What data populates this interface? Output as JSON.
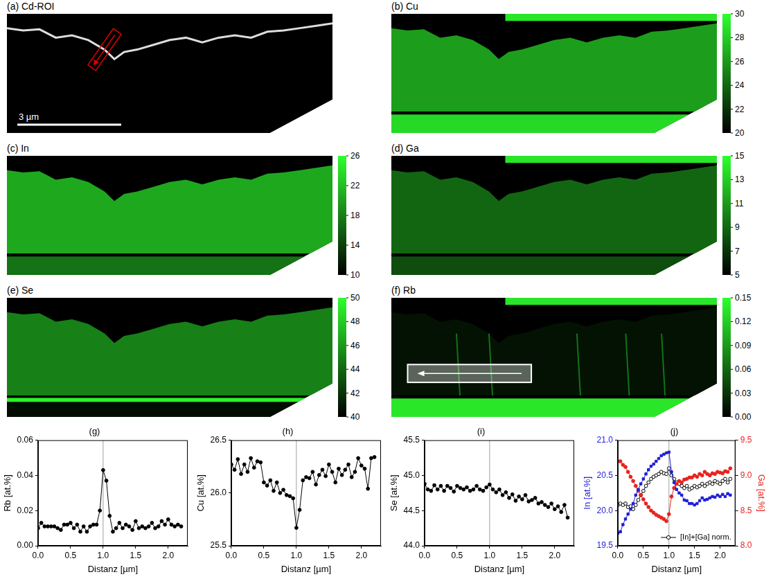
{
  "maps": [
    {
      "title": "(a) Cd-ROI",
      "scale_bar": "3 µm"
    },
    {
      "title": "(b) Cu",
      "colorbar": {
        "range": [
          20,
          30
        ],
        "ticks": [
          20,
          22,
          24,
          26,
          28,
          30
        ]
      }
    },
    {
      "title": "(c) In",
      "colorbar": {
        "range": [
          10,
          26
        ],
        "ticks": [
          10,
          14,
          18,
          22,
          26
        ]
      }
    },
    {
      "title": "(d) Ga",
      "colorbar": {
        "range": [
          5,
          15
        ],
        "ticks": [
          5,
          7,
          9,
          11,
          13,
          15
        ]
      }
    },
    {
      "title": "(e) Se",
      "colorbar": {
        "range": [
          40,
          50
        ],
        "ticks": [
          40,
          42,
          44,
          46,
          48,
          50
        ]
      }
    },
    {
      "title": "(f) Rb",
      "colorbar": {
        "range": [
          0,
          0.15
        ],
        "ticks": [
          {
            "value": 0,
            "label": "0.00"
          },
          0.03,
          0.06,
          0.09,
          0.12,
          0.15
        ]
      }
    }
  ],
  "chart_data": [
    {
      "type": "line",
      "title": "(g)",
      "x_label": "Distanz [µm]",
      "y_label": "Rb [at.%]",
      "grid": false,
      "vline": 1,
      "x": [
        0,
        0.05,
        0.1,
        0.15,
        0.2,
        0.25,
        0.3,
        0.35,
        0.4,
        0.45,
        0.5,
        0.55,
        0.6,
        0.65,
        0.7,
        0.75,
        0.8,
        0.85,
        0.9,
        0.95,
        1,
        1.05,
        1.1,
        1.15,
        1.2,
        1.25,
        1.3,
        1.35,
        1.4,
        1.45,
        1.5,
        1.55,
        1.6,
        1.65,
        1.7,
        1.75,
        1.8,
        1.85,
        1.9,
        1.95,
        2,
        2.05,
        2.1,
        2.15,
        2.2
      ],
      "xlim": [
        0,
        2.3
      ],
      "xticks": [
        {
          "value": 0,
          "label": "0.0"
        },
        0.5,
        {
          "value": 1,
          "label": "1.0"
        },
        1.5,
        {
          "value": 2,
          "label": "2.0"
        }
      ],
      "ylim": [
        0,
        0.06
      ],
      "yticks": [
        {
          "value": 0,
          "label": "0.00"
        },
        0.02,
        0.04,
        0.06
      ],
      "series": [
        {
          "color": "#000000",
          "marker": "circle",
          "values": [
            0.01,
            0.013,
            0.011,
            0.011,
            0.011,
            0.011,
            0.01,
            0.009,
            0.012,
            0.012,
            0.013,
            0.01,
            0.012,
            0.008,
            0.011,
            0.008,
            0.011,
            0.012,
            0.012,
            0.02,
            0.043,
            0.037,
            0.017,
            0.008,
            0.01,
            0.013,
            0.01,
            0.012,
            0.011,
            0.009,
            0.014,
            0.01,
            0.011,
            0.01,
            0.011,
            0.013,
            0.01,
            0.011,
            0.014,
            0.012,
            0.015,
            0.012,
            0.011,
            0.012,
            0.011
          ]
        }
      ]
    },
    {
      "type": "line",
      "title": "(h)",
      "x_label": "Distanz [µm]",
      "y_label": "Cu [at.%]",
      "grid": false,
      "vline": 1,
      "x": [
        0,
        0.05,
        0.1,
        0.15,
        0.2,
        0.25,
        0.3,
        0.35,
        0.4,
        0.45,
        0.5,
        0.55,
        0.6,
        0.65,
        0.7,
        0.75,
        0.8,
        0.85,
        0.9,
        0.95,
        1,
        1.05,
        1.1,
        1.15,
        1.2,
        1.25,
        1.3,
        1.35,
        1.4,
        1.45,
        1.5,
        1.55,
        1.6,
        1.65,
        1.7,
        1.75,
        1.8,
        1.85,
        1.9,
        1.95,
        2,
        2.05,
        2.1,
        2.15,
        2.2
      ],
      "xlim": [
        0,
        2.3
      ],
      "xticks": [
        {
          "value": 0,
          "label": "0.0"
        },
        0.5,
        {
          "value": 1,
          "label": "1.0"
        },
        1.5,
        {
          "value": 2,
          "label": "2.0"
        }
      ],
      "ylim": [
        25.5,
        26.5
      ],
      "yticks": [
        25.5,
        {
          "value": 26,
          "label": "26.0"
        },
        26.5
      ],
      "series": [
        {
          "color": "#000000",
          "marker": "circle",
          "values": [
            26.27,
            26.22,
            26.32,
            26.18,
            26.27,
            26.2,
            26.33,
            26.24,
            26.3,
            26.29,
            26.1,
            26.07,
            26.12,
            26.02,
            26.1,
            26.0,
            26.03,
            25.98,
            25.97,
            25.95,
            25.67,
            25.84,
            26.12,
            26.15,
            26.14,
            26.2,
            26.08,
            26.17,
            26.22,
            26.16,
            26.27,
            26.2,
            26.1,
            26.23,
            26.17,
            26.22,
            26.27,
            26.15,
            26.2,
            26.33,
            26.26,
            26.23,
            26.04,
            26.33,
            26.34
          ]
        }
      ]
    },
    {
      "type": "line",
      "title": "(i)",
      "x_label": "Distanz [µm]",
      "y_label": "Se [at.%]",
      "grid": false,
      "vline": 1,
      "x": [
        0,
        0.05,
        0.1,
        0.15,
        0.2,
        0.25,
        0.3,
        0.35,
        0.4,
        0.45,
        0.5,
        0.55,
        0.6,
        0.65,
        0.7,
        0.75,
        0.8,
        0.85,
        0.9,
        0.95,
        1,
        1.05,
        1.1,
        1.15,
        1.2,
        1.25,
        1.3,
        1.35,
        1.4,
        1.45,
        1.5,
        1.55,
        1.6,
        1.65,
        1.7,
        1.75,
        1.8,
        1.85,
        1.9,
        1.95,
        2,
        2.05,
        2.1,
        2.15,
        2.2
      ],
      "xlim": [
        0,
        2.3
      ],
      "xticks": [
        {
          "value": 0,
          "label": "0.0"
        },
        0.5,
        {
          "value": 1,
          "label": "1.0"
        },
        1.5,
        {
          "value": 2,
          "label": "2.0"
        }
      ],
      "ylim": [
        44,
        45.5
      ],
      "yticks": [
        {
          "value": 44,
          "label": "44.0"
        },
        44.5,
        {
          "value": 45,
          "label": "45.0"
        },
        45.5
      ],
      "series": [
        {
          "color": "#000000",
          "marker": "circle",
          "values": [
            44.88,
            44.8,
            44.78,
            44.86,
            44.8,
            44.85,
            44.78,
            44.85,
            44.82,
            44.77,
            44.85,
            44.82,
            44.8,
            44.83,
            44.78,
            44.8,
            44.85,
            44.8,
            44.78,
            44.83,
            44.87,
            44.8,
            44.76,
            44.8,
            44.72,
            44.76,
            44.68,
            44.73,
            44.64,
            44.7,
            44.66,
            44.72,
            44.63,
            44.65,
            44.68,
            44.6,
            44.62,
            44.58,
            44.55,
            44.6,
            44.52,
            44.56,
            44.48,
            44.58,
            44.4
          ]
        }
      ]
    },
    {
      "type": "line",
      "title": "(j)",
      "x_label": "Distanz [µm]",
      "y_label": "In [at.%]",
      "y2_label": "Ga [at.%]",
      "grid": false,
      "vline": 1,
      "legend": "lower right",
      "x": [
        0,
        0.05,
        0.1,
        0.15,
        0.2,
        0.25,
        0.3,
        0.35,
        0.4,
        0.45,
        0.5,
        0.55,
        0.6,
        0.65,
        0.7,
        0.75,
        0.8,
        0.85,
        0.9,
        0.95,
        1,
        1.05,
        1.1,
        1.15,
        1.2,
        1.25,
        1.3,
        1.35,
        1.4,
        1.45,
        1.5,
        1.55,
        1.6,
        1.65,
        1.7,
        1.75,
        1.8,
        1.85,
        1.9,
        1.95,
        2,
        2.05,
        2.1,
        2.15,
        2.2
      ],
      "xlim": [
        0,
        2.3
      ],
      "xticks": [
        {
          "value": 0,
          "label": "0.0"
        },
        0.5,
        {
          "value": 1,
          "label": "1.0"
        },
        1.5,
        {
          "value": 2,
          "label": "2.0"
        }
      ],
      "ylim": [
        19.5,
        21
      ],
      "yticks": [
        19.5,
        {
          "value": 20,
          "label": "20.0"
        },
        20.5,
        {
          "value": 21,
          "label": "21.0"
        }
      ],
      "y2lim": [
        8,
        9.5
      ],
      "y2ticks": [
        {
          "value": 8,
          "label": "8.0"
        },
        8.5,
        {
          "value": 9,
          "label": "9.0"
        },
        9.5
      ],
      "series": [
        {
          "color": "#1f1fd6",
          "marker": "square",
          "values": [
            19.68,
            19.7,
            19.8,
            19.88,
            19.95,
            20.02,
            20.1,
            20.22,
            20.3,
            20.38,
            20.45,
            20.52,
            20.58,
            20.63,
            20.66,
            20.7,
            20.74,
            20.78,
            20.8,
            20.82,
            20.83,
            20.55,
            20.4,
            20.3,
            20.25,
            20.22,
            20.15,
            20.14,
            20.1,
            20.1,
            20.08,
            20.1,
            20.14,
            20.18,
            20.15,
            20.16,
            20.18,
            20.2,
            20.19,
            20.22,
            20.2,
            20.23,
            20.2,
            20.24,
            20.22
          ]
        },
        {
          "color": "#e8231f",
          "marker": "circle",
          "axis": "y2",
          "values": [
            9.2,
            9.2,
            9.15,
            9.12,
            9.05,
            8.98,
            8.92,
            8.85,
            8.78,
            8.72,
            8.66,
            8.6,
            8.55,
            8.5,
            8.47,
            8.44,
            8.42,
            8.4,
            8.38,
            8.35,
            8.45,
            8.7,
            8.82,
            8.88,
            8.92,
            8.9,
            8.94,
            8.95,
            8.97,
            8.97,
            9.0,
            8.98,
            9.02,
            9.0,
            9.05,
            9.02,
            9.0,
            9.03,
            9.02,
            9.05,
            9.04,
            9.03,
            9.06,
            9.05,
            9.1
          ]
        },
        {
          "name": "[In]+[Ga] norm.",
          "color": "#000000",
          "marker": "open_circle",
          "values": [
            20.08,
            20.1,
            20.08,
            20.1,
            20.05,
            20.06,
            20.02,
            20.08,
            20.15,
            20.22,
            20.28,
            20.35,
            20.4,
            20.45,
            20.48,
            20.5,
            20.52,
            20.55,
            20.53,
            20.52,
            20.6,
            20.5,
            20.45,
            20.4,
            20.38,
            20.35,
            20.32,
            20.35,
            20.3,
            20.32,
            20.35,
            20.33,
            20.35,
            20.38,
            20.35,
            20.38,
            20.4,
            20.38,
            20.42,
            20.4,
            20.38,
            20.42,
            20.45,
            20.4,
            20.45
          ]
        }
      ]
    }
  ]
}
